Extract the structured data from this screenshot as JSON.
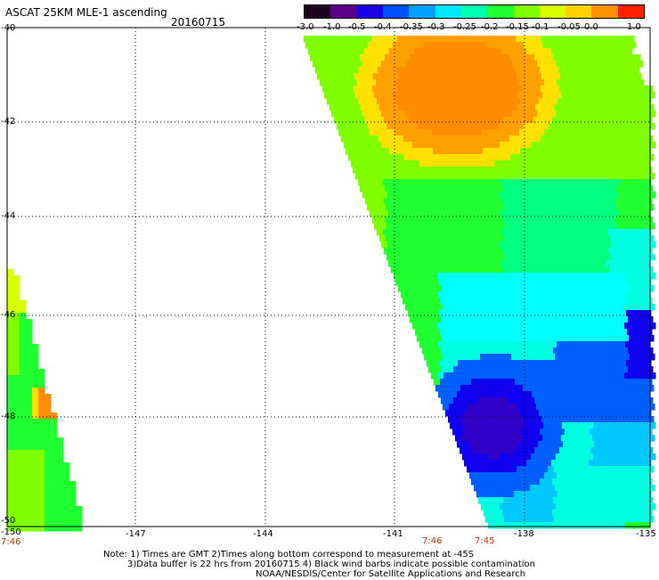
{
  "title": "ASCAT 25KM MLE-1 ascending",
  "date": "20160715",
  "colorbar": {
    "labels": [
      "-3.0",
      "-1.0",
      "-0.5",
      "-0.4",
      "-0.35",
      "-0.3",
      "-0.25",
      "-0.2",
      "-0.15",
      "-0.1",
      "-0.05",
      "0.0",
      "1.0"
    ],
    "colors": [
      "#200020",
      "#5a008c",
      "#1a00e6",
      "#0050ff",
      "#00a0ff",
      "#00e8ff",
      "#00ffb0",
      "#20ff30",
      "#80ff00",
      "#d8ff00",
      "#ffd000",
      "#ff9000",
      "#ff2000"
    ]
  },
  "latitude_labels": [
    "-40",
    "-42",
    "-44",
    "-46",
    "-48",
    "-50"
  ],
  "longitude_labels": [
    "-150",
    "-147",
    "-144",
    "-141",
    "-138",
    "-135"
  ],
  "time_labels": [
    "7:46",
    "7:46",
    "7:45"
  ],
  "notes": [
    "Note: 1) Times are GMT 2)Times along bottom correspond to measurement at -45S",
    "3)Data buffer is 22 hrs from 20160715 4) Black wind barbs indicate possible contamination",
    "NOAA/NESDIS/Center for Satellite Applications and Research"
  ],
  "swaths": [
    {
      "name": "east-swath",
      "region": "lat -40 to -50, lon approx -141 to -135",
      "dominant_values": [
        "-0.05",
        "0.0",
        "-0.2",
        "-0.25",
        "-0.3",
        "-0.4",
        "-0.5"
      ]
    },
    {
      "name": "west-swath",
      "region": "lat -45 to -50, lon -150 to -148.5",
      "dominant_values": [
        "-0.2",
        "-0.15",
        "-0.1",
        "0.0"
      ]
    }
  ]
}
